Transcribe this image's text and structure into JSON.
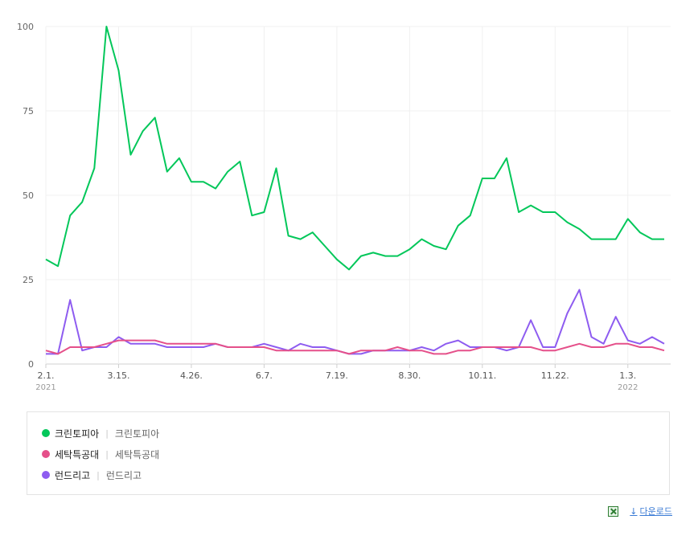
{
  "chart_data": {
    "type": "line",
    "ylim": [
      0,
      100
    ],
    "yticks": [
      0,
      25,
      50,
      75,
      100
    ],
    "ytick_labels": [
      "0",
      "25",
      "50",
      "75",
      "100"
    ],
    "x_tick_labels": [
      {
        "index": 0,
        "label": "2.1.",
        "sub": "2021"
      },
      {
        "index": 6,
        "label": "3.15."
      },
      {
        "index": 12,
        "label": "4.26."
      },
      {
        "index": 18,
        "label": "6.7."
      },
      {
        "index": 24,
        "label": "7.19."
      },
      {
        "index": 30,
        "label": "8.30."
      },
      {
        "index": 36,
        "label": "10.11."
      },
      {
        "index": 42,
        "label": "11.22."
      },
      {
        "index": 48,
        "label": "1.3.",
        "sub": "2022"
      }
    ],
    "grid": true,
    "series": [
      {
        "name": "크린토피아",
        "color": "#03c75a",
        "values": [
          31,
          29,
          44,
          48,
          58,
          100,
          87,
          62,
          69,
          73,
          57,
          61,
          54,
          54,
          52,
          57,
          60,
          44,
          45,
          58,
          38,
          37,
          39,
          35,
          31,
          28,
          32,
          33,
          32,
          32,
          34,
          37,
          35,
          34,
          41,
          44,
          55,
          55,
          61,
          45,
          47,
          45,
          45,
          42,
          40,
          37,
          37,
          37,
          43,
          39,
          37,
          37
        ]
      },
      {
        "name": "세탁특공대",
        "color": "#e5508a",
        "values": [
          4,
          3,
          5,
          5,
          5,
          6,
          7,
          7,
          7,
          7,
          6,
          6,
          6,
          6,
          6,
          5,
          5,
          5,
          5,
          4,
          4,
          4,
          4,
          4,
          4,
          3,
          4,
          4,
          4,
          5,
          4,
          4,
          3,
          3,
          4,
          4,
          5,
          5,
          5,
          5,
          5,
          4,
          4,
          5,
          6,
          5,
          5,
          6,
          6,
          5,
          5,
          4
        ]
      },
      {
        "name": "런드리고",
        "color": "#8e5cf0",
        "values": [
          3,
          3,
          19,
          4,
          5,
          5,
          8,
          6,
          6,
          6,
          5,
          5,
          5,
          5,
          6,
          5,
          5,
          5,
          6,
          5,
          4,
          6,
          5,
          5,
          4,
          3,
          3,
          4,
          4,
          4,
          4,
          5,
          4,
          6,
          7,
          5,
          5,
          5,
          4,
          5,
          13,
          5,
          5,
          15,
          22,
          8,
          6,
          14,
          7,
          6,
          8,
          6
        ]
      }
    ]
  },
  "legend": {
    "items": [
      {
        "name": "크린토피아",
        "desc": "크린토피아",
        "color": "#03c75a"
      },
      {
        "name": "세탁특공대",
        "desc": "세탁특공대",
        "color": "#e5508a"
      },
      {
        "name": "런드리고",
        "desc": "런드리고",
        "color": "#8e5cf0"
      }
    ],
    "separator": "|"
  },
  "footer": {
    "excel_icon": "excel-icon",
    "download_arrow": "↓",
    "download_label": "다운로드"
  }
}
